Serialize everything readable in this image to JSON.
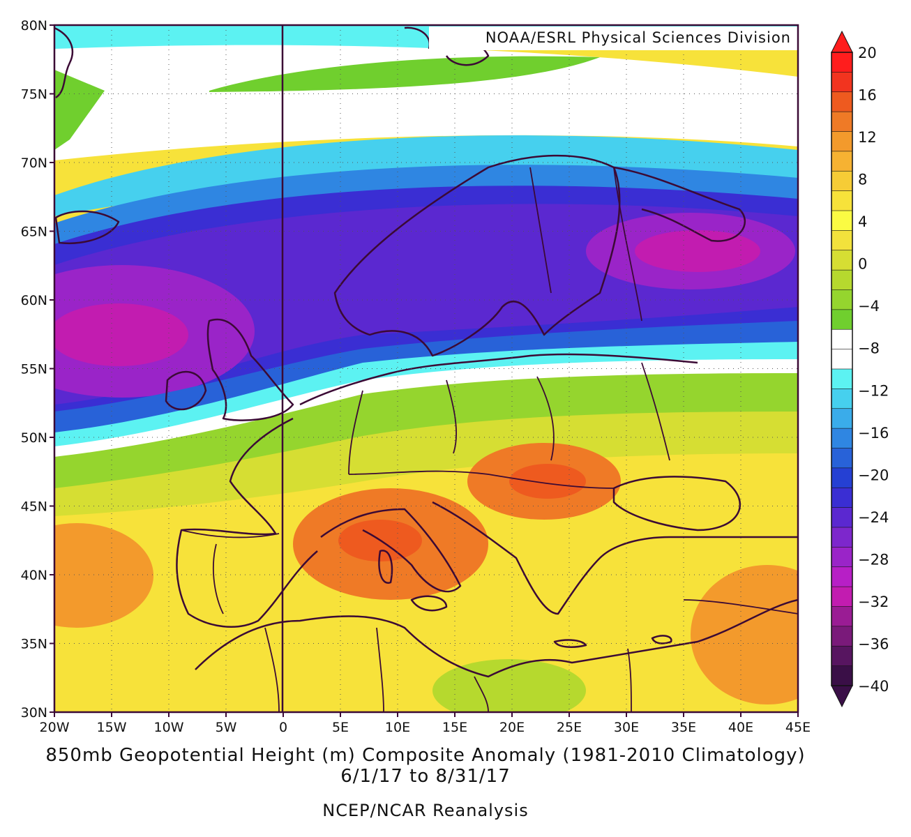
{
  "map": {
    "credit": "NOAA/ESRL Physical Sciences Division",
    "title": "850mb Geopotential Height (m) Composite Anomaly (1981-2010 Climatology)",
    "dates": "6/1/17   to 8/31/17",
    "source": "NCEP/NCAR Reanalysis",
    "lon_ticks": [
      "20W",
      "15W",
      "10W",
      "5W",
      "0",
      "5E",
      "10E",
      "15E",
      "20E",
      "25E",
      "30E",
      "35E",
      "40E",
      "45E"
    ],
    "lat_ticks": [
      "80N",
      "75N",
      "70N",
      "65N",
      "60N",
      "55N",
      "50N",
      "45N",
      "40N",
      "35N",
      "30N"
    ],
    "extent": {
      "lon_min": -20,
      "lon_max": 45,
      "lat_min": 30,
      "lat_max": 80
    }
  },
  "legend": {
    "labels": [
      "20",
      "16",
      "12",
      "8",
      "4",
      "0",
      "-4",
      "-8",
      "-12",
      "-16",
      "-20",
      "-24",
      "-28",
      "-32",
      "-36",
      "-40"
    ],
    "colors": [
      "#ff1d1d",
      "#f2341f",
      "#ee5a1f",
      "#ef7a26",
      "#f39a2c",
      "#f6b232",
      "#f6cc36",
      "#f7e23a",
      "#fbfb43",
      "#f2e23c",
      "#d6de33",
      "#b6d92e",
      "#95d52e",
      "#70cf2e",
      "#ffffff",
      "#ffffff",
      "#5cf2f2",
      "#46d0ee",
      "#3aacea",
      "#2f86e2",
      "#2862d8",
      "#2540d3",
      "#3a2ed3",
      "#5b28d0",
      "#7d27cc",
      "#9a24c8",
      "#b71fc6",
      "#c21cb0",
      "#9a1c94",
      "#7a1a7a",
      "#571560",
      "#3a0f47"
    ]
  },
  "anomaly_centers": [
    {
      "lon": -13,
      "lat": 58,
      "value": -34
    },
    {
      "lon": 36,
      "lat": 63.5,
      "value": -34
    },
    {
      "lon": 10,
      "lat": 42,
      "value": 15
    },
    {
      "lon": 25,
      "lat": 46.5,
      "value": 15
    },
    {
      "lon": -18,
      "lat": 40,
      "value": 13
    },
    {
      "lon": 43,
      "lat": 35,
      "value": 13
    },
    {
      "lon": 20,
      "lat": 31,
      "value": -3
    },
    {
      "lon": 10,
      "lat": 76,
      "value": -6
    },
    {
      "lon": -19,
      "lat": 74,
      "value": -5
    }
  ]
}
